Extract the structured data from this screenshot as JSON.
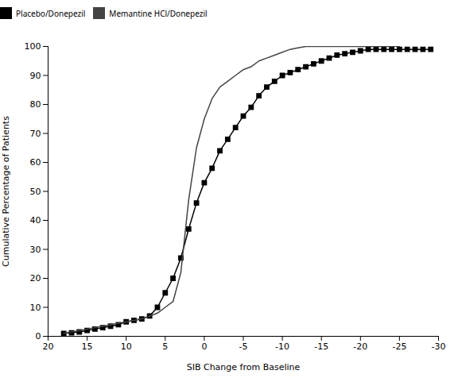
{
  "chart_data": {
    "type": "line",
    "xlabel": "SIB Change from Baseline",
    "ylabel": "Cumulative Percentage of Patients",
    "xlim": [
      20,
      -30
    ],
    "ylim": [
      0,
      100
    ],
    "xticks": [
      20,
      15,
      10,
      5,
      0,
      -5,
      -10,
      -15,
      -20,
      -25,
      -30
    ],
    "yticks": [
      0,
      10,
      20,
      30,
      40,
      50,
      60,
      70,
      80,
      90,
      100
    ],
    "series": [
      {
        "name": "Placebo/Donepezil",
        "color": "#000000",
        "marker": "square",
        "x": [
          18,
          17,
          16,
          15,
          14,
          13,
          12,
          11,
          10,
          9,
          8,
          7,
          6,
          5,
          4,
          3,
          2,
          1,
          0,
          -1,
          -2,
          -3,
          -4,
          -5,
          -6,
          -7,
          -8,
          -9,
          -10,
          -11,
          -12,
          -13,
          -14,
          -15,
          -16,
          -17,
          -18,
          -19,
          -20,
          -21,
          -22,
          -23,
          -24,
          -25,
          -26,
          -27,
          -28,
          -29
        ],
        "values": [
          1,
          1.2,
          1.5,
          2,
          2.5,
          3,
          3.5,
          4,
          5,
          5.5,
          6,
          7,
          10,
          15,
          20,
          27,
          37,
          46,
          53,
          58,
          64,
          68,
          72,
          76,
          79,
          83,
          86,
          88,
          90,
          91,
          92,
          93,
          94,
          95,
          96,
          97,
          97.5,
          98,
          98.5,
          99,
          99,
          99,
          99,
          99,
          99,
          99,
          99,
          99
        ]
      },
      {
        "name": "Memantine HCl/Donepezil",
        "color": "#444444",
        "x": [
          18,
          17,
          16,
          15,
          14,
          13,
          12,
          11,
          10,
          9,
          8,
          7,
          6,
          5,
          4,
          3,
          2,
          1,
          0,
          -1,
          -2,
          -3,
          -4,
          -5,
          -6,
          -7,
          -8,
          -9,
          -10,
          -11,
          -12,
          -13,
          -14,
          -15,
          -16,
          -17,
          -18,
          -19,
          -20,
          -21,
          -22,
          -23,
          -24,
          -25
        ],
        "values": [
          1,
          1.5,
          2,
          2.5,
          3,
          3.5,
          4,
          4.5,
          5,
          5.5,
          6,
          7,
          8,
          10,
          12,
          22,
          47,
          65,
          75,
          82,
          86,
          88,
          90,
          92,
          93,
          95,
          96,
          97,
          98,
          99,
          99.5,
          100,
          100,
          100,
          100,
          100,
          100,
          100,
          100,
          100,
          100,
          100,
          100,
          100
        ]
      }
    ]
  }
}
